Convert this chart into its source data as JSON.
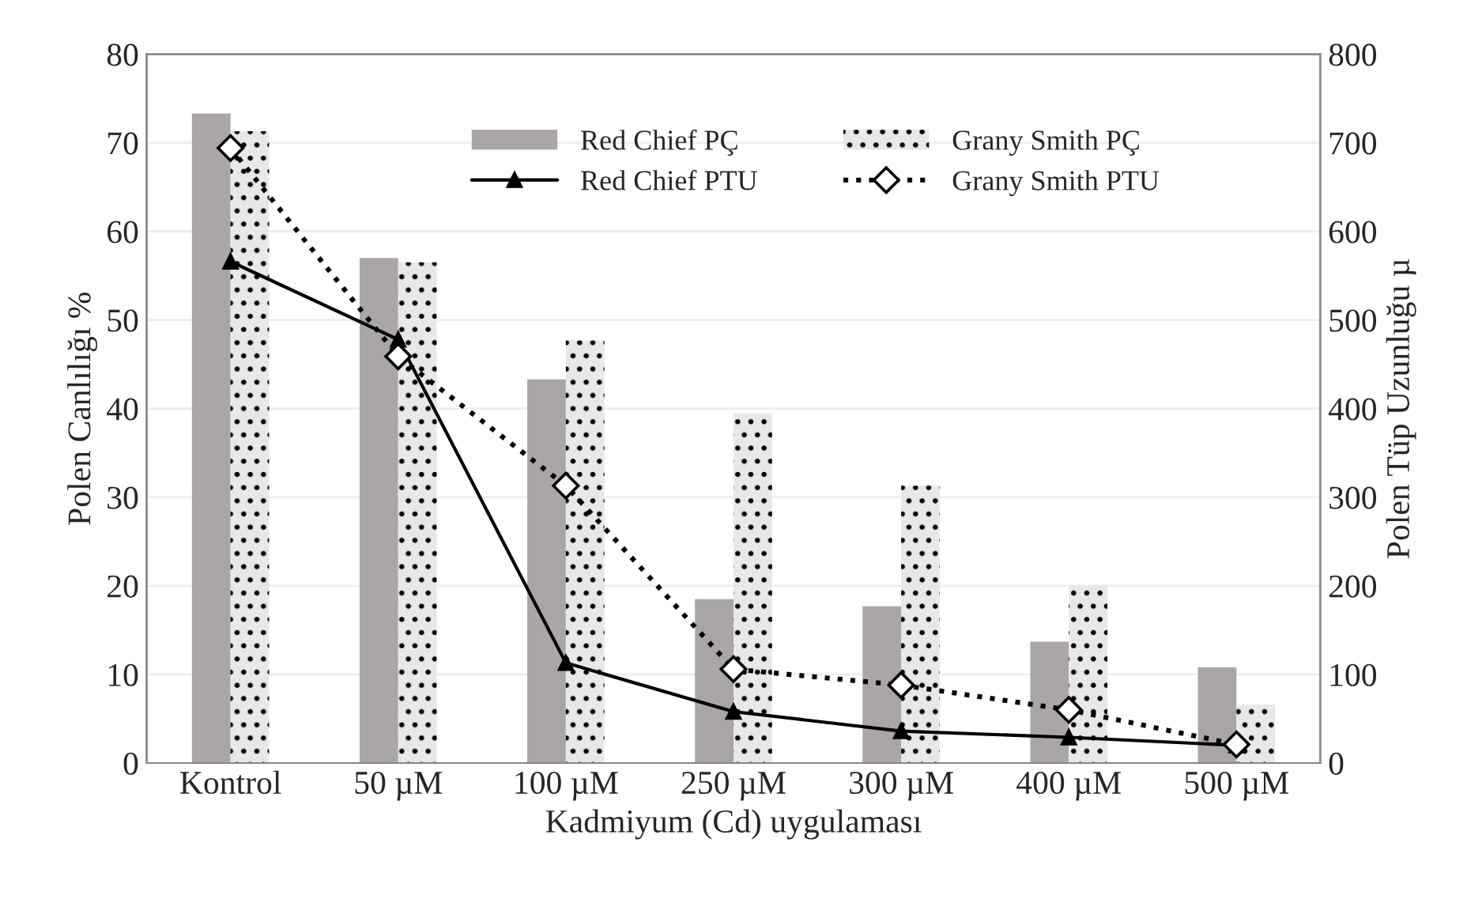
{
  "chart_data": {
    "type": "bar",
    "xlabel": "Kadmiyum (Cd) uygulaması",
    "ylabel": "Polen Canlılığı %",
    "y2label": "Polen Tüp Uzunluğu µ",
    "categories": [
      "Kontrol",
      "50 µM",
      "100 µM",
      "250 µM",
      "300 µM",
      "400 µM",
      "500 µM"
    ],
    "series": [
      {
        "name": "Red Chief PÇ",
        "color": "#aaa6a6",
        "values": [
          73.3,
          57.0,
          43.3,
          18.5,
          17.7,
          13.7,
          10.8
        ]
      },
      {
        "name": "Red Chief PTU",
        "type": "line",
        "axis": "y2",
        "color": "#000000",
        "marker": "triangle",
        "line_style": "solid",
        "values": [
          566,
          478,
          113,
          58,
          36,
          29,
          20
        ]
      },
      {
        "name": "Grany Smith PÇ",
        "color": "#e8e8e8",
        "values": [
          71.3,
          56.5,
          47.7,
          39.5,
          31.3,
          20.0,
          6.6
        ]
      },
      {
        "name": "Grany Smith PTU",
        "type": "line",
        "axis": "y2",
        "color": "#000000",
        "marker": "diamond",
        "line_style": "dotted",
        "values": [
          694,
          459,
          313,
          106,
          88,
          60,
          21
        ]
      }
    ],
    "ylim": [
      0,
      80
    ],
    "yticks": [
      0,
      10,
      20,
      30,
      40,
      50,
      60,
      70,
      80
    ],
    "y2lim": [
      0,
      800
    ],
    "y2ticks": [
      0,
      100,
      200,
      300,
      400,
      500,
      600,
      700,
      800
    ],
    "grid": "y",
    "legend": "top"
  }
}
